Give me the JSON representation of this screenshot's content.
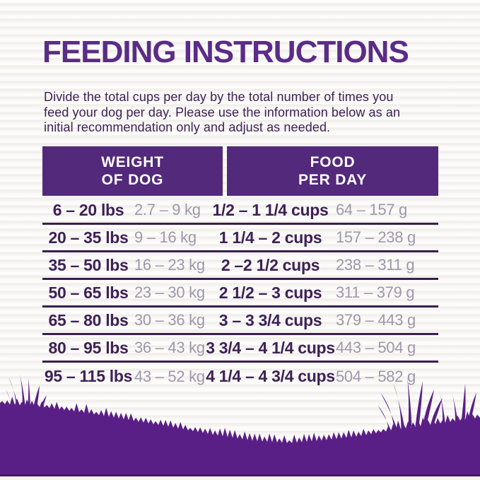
{
  "header": {
    "title": "FEEDING INSTRUCTIONS"
  },
  "intro": {
    "lines": [
      "Divide the total cups per day by the total number of times you",
      "feed your dog per day. Please use the information below as an",
      "initial recommendation only and adjust as needed."
    ]
  },
  "table": {
    "weight_header": {
      "line1": "WEIGHT",
      "line2": "OF DOG"
    },
    "food_header": {
      "line1": "FOOD",
      "line2": "PER DAY"
    },
    "rows": [
      {
        "lbs": "6 – 20 lbs",
        "kg": "2.7 – 9 kg",
        "cups": "1/2 – 1 1/4 cups",
        "grams": "64 – 157 g"
      },
      {
        "lbs": "20 – 35 lbs",
        "kg": "9 – 16 kg",
        "cups": "1 1/4 – 2 cups",
        "grams": "157 – 238 g"
      },
      {
        "lbs": "35 – 50 lbs",
        "kg": "16 – 23 kg",
        "cups": "2 –2 1/2 cups",
        "grams": "238 – 311 g"
      },
      {
        "lbs": "50 – 65 lbs",
        "kg": "23 – 30 kg",
        "cups": "2 1/2 – 3 cups",
        "grams": "311 – 379 g"
      },
      {
        "lbs": "65 – 80 lbs",
        "kg": "30 – 36 kg",
        "cups": "3 – 3 3/4 cups",
        "grams": "379 – 443 g"
      },
      {
        "lbs": "80 – 95 lbs",
        "kg": "36 – 43 kg",
        "cups": "3 3/4 – 4 1/4 cups",
        "grams": "443 – 504 g"
      },
      {
        "lbs": "95 – 115 lbs",
        "kg": "43 – 52 kg",
        "cups": "4 1/4 – 4 3/4 cups",
        "grams": "504 – 582 g"
      }
    ]
  },
  "colors": {
    "title": "#5B2C87",
    "header_bg": "#53297B",
    "header_text": "#FFFFFF",
    "text_dark": "#3E2156",
    "text_muted": "#A096AA",
    "divider": "#3A1F4E",
    "grass": "#5A1F86",
    "grass_dark_line": "#471566",
    "background": "#F7F6F3"
  }
}
